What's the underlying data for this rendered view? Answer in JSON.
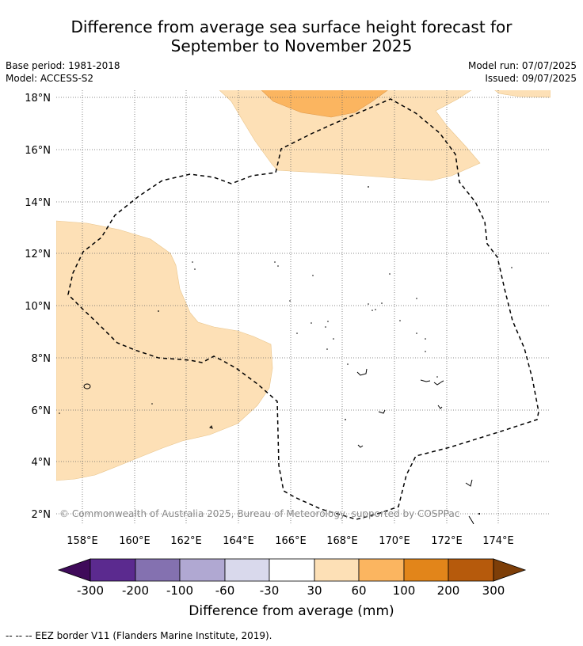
{
  "header": {
    "title_line1": "Difference from average sea surface height forecast for",
    "title_line2": "September to November 2025"
  },
  "info": {
    "base_period": "Base period: 1981-2018",
    "model": "Model: ACCESS-S2",
    "model_run": "Model run: 07/07/2025",
    "issued": "Issued: 09/07/2025"
  },
  "map": {
    "lat_labels": [
      "18°N",
      "16°N",
      "14°N",
      "12°N",
      "10°N",
      "8°N",
      "6°N",
      "4°N",
      "2°N"
    ],
    "lon_labels": [
      "158°E",
      "160°E",
      "162°E",
      "164°E",
      "166°E",
      "168°E",
      "170°E",
      "172°E",
      "174°E"
    ],
    "copyright": "© Commonwealth of Australia 2025, Bureau of Meteorology, supported by COSPPac"
  },
  "colorbar": {
    "tick_labels": [
      "-300",
      "-200",
      "-100",
      "-60",
      "-30",
      "30",
      "60",
      "100",
      "200",
      "300"
    ],
    "colors": [
      "#3f0a5a",
      "#5b2a8f",
      "#8471b0",
      "#b0a8d2",
      "#d9d9ec",
      "#ffffff",
      "#fde0b6",
      "#fbb560",
      "#e2851a",
      "#b65a0c",
      "#7d3e08"
    ],
    "label": "Difference from average (mm)"
  },
  "legend": {
    "eez_text": "-- -- -- EEZ border V11 (Flanders Marine Institute, 2019)."
  }
}
